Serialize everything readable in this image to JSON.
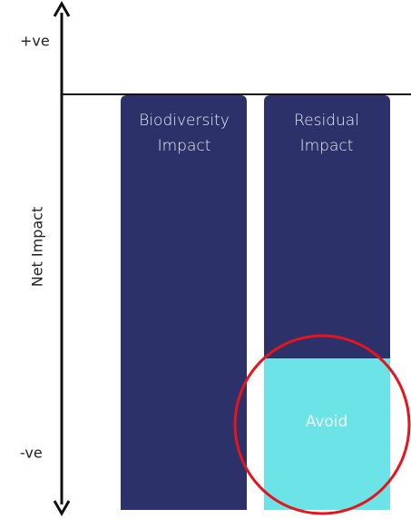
{
  "axis": {
    "top_label": "+ve",
    "bottom_label": "-ve",
    "title": "Net Impact"
  },
  "bars": [
    {
      "label": [
        "Biodiversity",
        "Impact"
      ]
    },
    {
      "label": [
        "Residual",
        "Impact"
      ],
      "segment": "Avoid"
    }
  ]
}
